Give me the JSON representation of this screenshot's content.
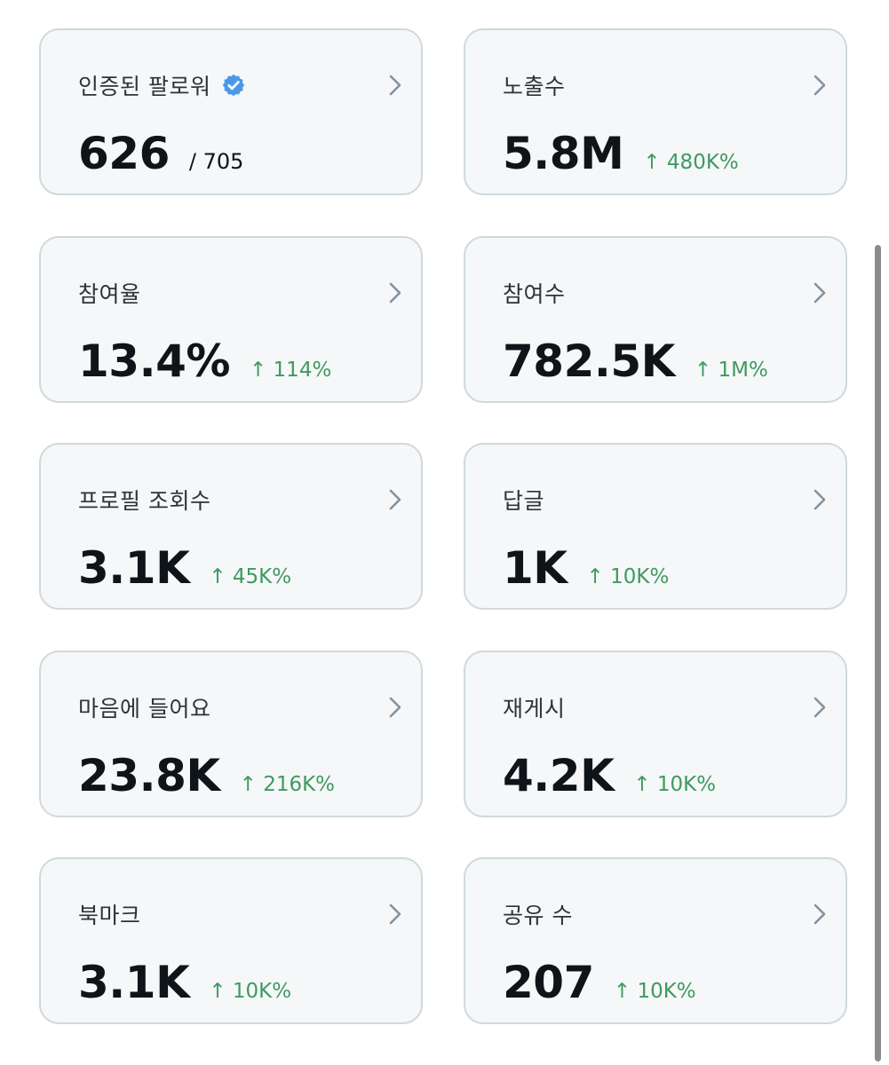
{
  "cards": [
    {
      "label": "인증된 팔로워",
      "value": "626",
      "total": "/ 705",
      "change": "",
      "verified_icon": "verified-badge-icon"
    },
    {
      "label": "노출수",
      "value": "5.8M",
      "change": "↑ 480K%"
    },
    {
      "label": "참여율",
      "value": "13.4%",
      "change": "↑ 114%"
    },
    {
      "label": "참여수",
      "value": "782.5K",
      "change": "↑ 1M%"
    },
    {
      "label": "프로필 조회수",
      "value": "3.1K",
      "change": "↑ 45K%"
    },
    {
      "label": "답글",
      "value": "1K",
      "change": "↑ 10K%"
    },
    {
      "label": "마음에 들어요",
      "value": "23.8K",
      "change": "↑ 216K%"
    },
    {
      "label": "재게시",
      "value": "4.2K",
      "change": "↑ 10K%"
    },
    {
      "label": "북마크",
      "value": "3.1K",
      "change": "↑ 10K%"
    },
    {
      "label": "공유 수",
      "value": "207",
      "change": "↑ 10K%"
    }
  ],
  "colors": {
    "positive_change": "#3f9a5e",
    "verified_badge": "#4a99e9",
    "card_background": "#f5f7f9",
    "card_border": "#cfd9de",
    "chevron": "#8292a0"
  },
  "icons": {
    "chevron": "chevron-right-icon",
    "verified": "verified-badge-icon"
  }
}
